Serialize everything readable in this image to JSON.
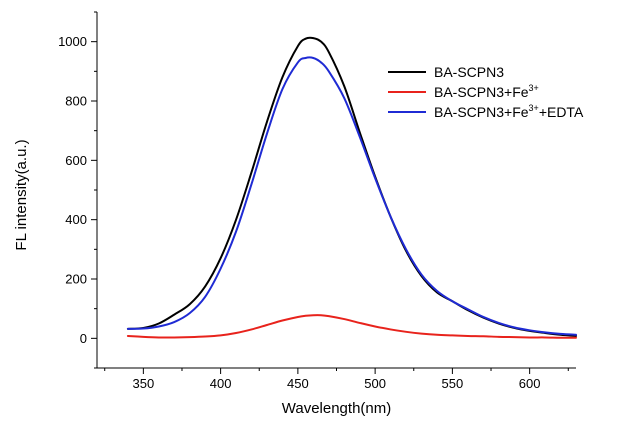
{
  "chart_data": {
    "type": "line",
    "xlabel": "Wavelength(nm)",
    "ylabel": "FL intensity(a.u.)",
    "xlim": [
      320,
      630
    ],
    "ylim": [
      -100,
      1100
    ],
    "x_ticks": [
      350,
      400,
      450,
      500,
      550,
      600
    ],
    "y_ticks": [
      0,
      200,
      400,
      600,
      800,
      1000
    ],
    "grid": false,
    "legend_position": "top-right",
    "x": [
      340,
      350,
      360,
      370,
      380,
      390,
      400,
      410,
      420,
      430,
      440,
      450,
      455,
      460,
      465,
      470,
      480,
      490,
      500,
      510,
      520,
      530,
      540,
      550,
      560,
      570,
      580,
      590,
      600,
      610,
      620,
      630
    ],
    "series": [
      {
        "name": "BA-SCPN3",
        "legend": {
          "base": "BA-SCPN3",
          "sup1": "",
          "mid": "",
          "sup2": "",
          "tail": ""
        },
        "color": "#000000",
        "values": [
          32,
          35,
          50,
          80,
          115,
          175,
          270,
          400,
          560,
          730,
          880,
          985,
          1010,
          1012,
          1000,
          965,
          850,
          695,
          545,
          410,
          295,
          210,
          155,
          125,
          95,
          70,
          50,
          35,
          25,
          18,
          12,
          8
        ]
      },
      {
        "name": "BA-SCPN3+Fe3+",
        "legend": {
          "base": "BA-SCPN3+Fe",
          "sup1": "3+",
          "mid": "",
          "sup2": "",
          "tail": ""
        },
        "color": "#e8231c",
        "values": [
          8,
          5,
          3,
          3,
          4,
          6,
          10,
          18,
          30,
          45,
          60,
          72,
          76,
          78,
          78,
          75,
          65,
          52,
          40,
          30,
          22,
          16,
          12,
          10,
          8,
          7,
          5,
          4,
          3,
          3,
          2,
          2
        ]
      },
      {
        "name": "BA-SCPN3+Fe3++EDTA",
        "legend": {
          "base": "BA-SCPN3+Fe",
          "sup1": "3+",
          "mid": "+EDTA",
          "sup2": "",
          "tail": ""
        },
        "color": "#1f2bd4",
        "values": [
          32,
          33,
          40,
          55,
          85,
          140,
          235,
          360,
          520,
          690,
          840,
          930,
          945,
          945,
          930,
          900,
          810,
          680,
          540,
          410,
          300,
          215,
          160,
          125,
          98,
          72,
          52,
          37,
          27,
          20,
          15,
          12
        ]
      }
    ]
  }
}
